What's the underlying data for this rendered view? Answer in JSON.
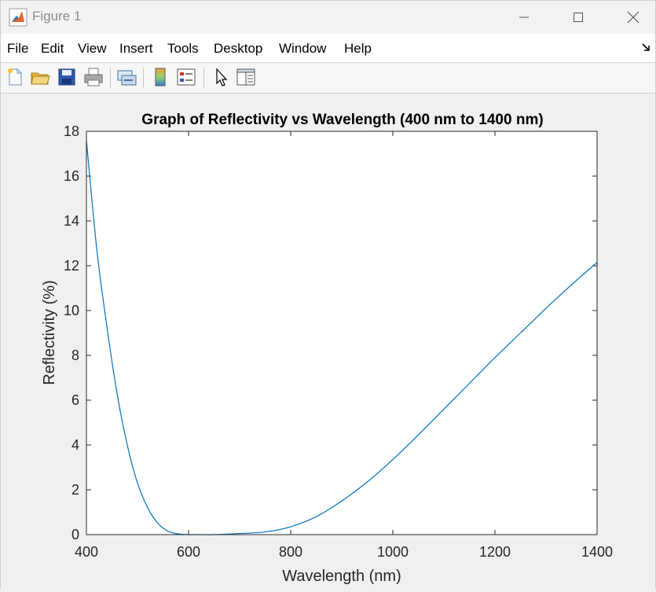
{
  "window": {
    "title": "Figure 1",
    "controls": {
      "minimize": "minimize-icon",
      "maximize": "maximize-icon",
      "close": "close-icon"
    }
  },
  "menu": {
    "items": [
      "File",
      "Edit",
      "View",
      "Insert",
      "Tools",
      "Desktop",
      "Window",
      "Help"
    ],
    "overflow_icon": "dock-arrow-icon"
  },
  "toolbar": {
    "tools": [
      "new-figure-icon",
      "open-file-icon",
      "save-icon",
      "print-icon",
      "link-plot-icon",
      "insert-colorbar-icon",
      "insert-legend-icon",
      "edit-plot-icon",
      "property-inspector-icon"
    ]
  },
  "chart_data": {
    "type": "line",
    "title": "Graph of Reflectivity vs Wavelength (400 nm to 1400 nm)",
    "xlabel": "Wavelength (nm)",
    "ylabel": "Reflectivity (%)",
    "xlim": [
      400,
      1400
    ],
    "ylim": [
      0,
      18
    ],
    "xticks": [
      400,
      600,
      800,
      1000,
      1200,
      1400
    ],
    "yticks": [
      0,
      2,
      4,
      6,
      8,
      10,
      12,
      14,
      16,
      18
    ],
    "grid": false,
    "line_color": "#0072BD",
    "series": [
      {
        "x": [
          400,
          420,
          440,
          460,
          480,
          500,
          520,
          540,
          560,
          580,
          600,
          620,
          650,
          700,
          750,
          800,
          850,
          900,
          950,
          1000,
          1050,
          1100,
          1150,
          1200,
          1250,
          1300,
          1350,
          1400
        ],
        "y": [
          17.6,
          12.8,
          9.3,
          6.3,
          4.0,
          2.3,
          1.2,
          0.5,
          0.15,
          0.03,
          0.0,
          0.0,
          0.0,
          0.05,
          0.12,
          0.35,
          0.8,
          1.5,
          2.35,
          3.35,
          4.45,
          5.6,
          6.75,
          7.9,
          9.0,
          10.1,
          11.15,
          12.15
        ]
      }
    ]
  }
}
